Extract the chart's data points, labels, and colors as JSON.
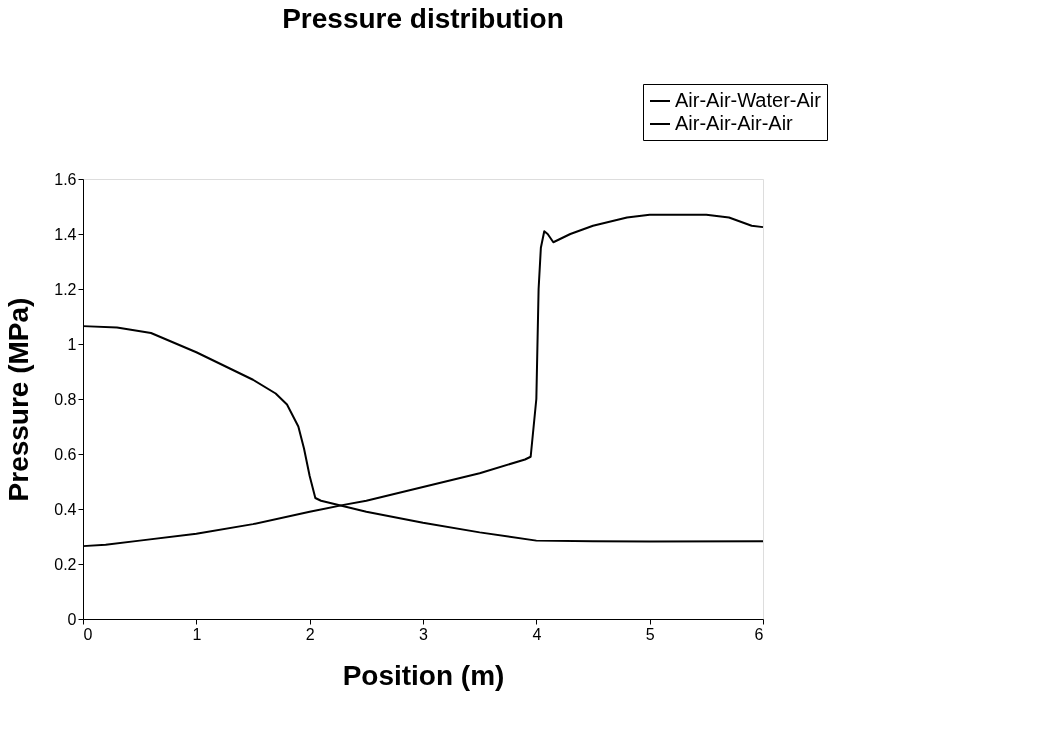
{
  "chart_data": {
    "type": "line",
    "title": "Pressure distribution",
    "xlabel": "Position (m)",
    "ylabel": "Pressure (MPa)",
    "xlim": [
      0,
      6
    ],
    "xticks": [
      0,
      1,
      2,
      3,
      4,
      5,
      6
    ],
    "ylim": [
      0,
      1.6
    ],
    "yticks": [
      0,
      0.2,
      0.4,
      0.6,
      0.8,
      1,
      1.2,
      1.4,
      1.6
    ],
    "grid": false,
    "legend": "top right",
    "marker": "none",
    "line_style": "solid",
    "series": [
      {
        "name": "Air-Air-Water-Air",
        "color": "#000000",
        "x": [
          0,
          0.2,
          0.5,
          1,
          1.5,
          2,
          2.3,
          2.5,
          3,
          3.5,
          3.9,
          3.95,
          4.0,
          4.02,
          4.04,
          4.07,
          4.1,
          4.15,
          4.2,
          4.3,
          4.5,
          4.8,
          5,
          5.5,
          5.7,
          5.9,
          6
        ],
        "values": [
          0.265,
          0.27,
          0.285,
          0.31,
          0.345,
          0.39,
          0.415,
          0.43,
          0.48,
          0.53,
          0.58,
          0.59,
          0.8,
          1.2,
          1.35,
          1.41,
          1.4,
          1.37,
          1.38,
          1.4,
          1.43,
          1.46,
          1.47,
          1.47,
          1.46,
          1.43,
          1.425
        ]
      },
      {
        "name": "Air-Air-Air-Air",
        "color": "#000000",
        "x": [
          0,
          0.3,
          0.6,
          1,
          1.3,
          1.5,
          1.7,
          1.8,
          1.9,
          1.95,
          2.0,
          2.05,
          2.1,
          2.3,
          2.5,
          3,
          3.5,
          4,
          4.5,
          5,
          6
        ],
        "values": [
          1.065,
          1.06,
          1.04,
          0.97,
          0.91,
          0.87,
          0.82,
          0.78,
          0.7,
          0.62,
          0.52,
          0.44,
          0.43,
          0.41,
          0.39,
          0.35,
          0.315,
          0.285,
          0.283,
          0.282,
          0.283
        ]
      }
    ]
  }
}
